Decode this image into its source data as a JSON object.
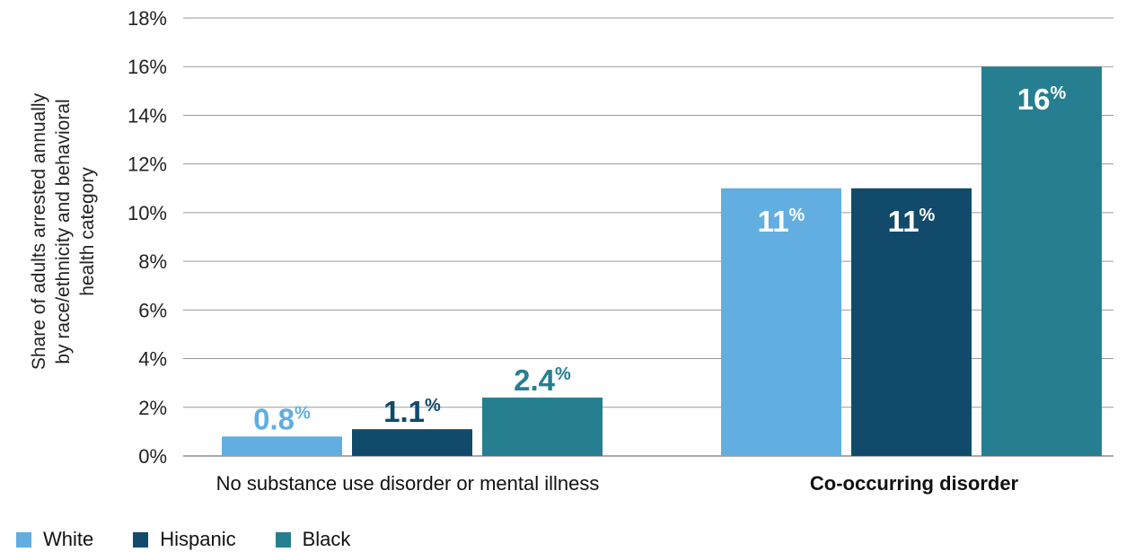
{
  "chart_data": {
    "type": "bar",
    "ylabel": "Share of adults arrested annually by race/ethnicity and behavioral health category",
    "ylabel_lines": [
      "Share of adults arrested annually",
      "by race/ethnicity and behavioral",
      "health category"
    ],
    "ylim": [
      0,
      18
    ],
    "yticks": [
      0,
      2,
      4,
      6,
      8,
      10,
      12,
      14,
      16,
      18
    ],
    "ytick_labels": [
      "0%",
      "2%",
      "4%",
      "6%",
      "8%",
      "10%",
      "12%",
      "14%",
      "16%",
      "18%"
    ],
    "grid": true,
    "categories": [
      "No substance use disorder or mental illness",
      "Co-occurring disorder"
    ],
    "series": [
      {
        "name": "White",
        "color": "#62aee0",
        "values": [
          0.8,
          11
        ],
        "value_labels": [
          "0.8",
          "11"
        ]
      },
      {
        "name": "Hispanic",
        "color": "#114a6b",
        "values": [
          1.1,
          11
        ],
        "value_labels": [
          "1.1",
          "11"
        ]
      },
      {
        "name": "Black",
        "color": "#267f91",
        "values": [
          2.4,
          16
        ],
        "value_labels": [
          "2.4",
          "16"
        ]
      }
    ],
    "value_suffix": "%",
    "legend_position": "bottom-left"
  }
}
